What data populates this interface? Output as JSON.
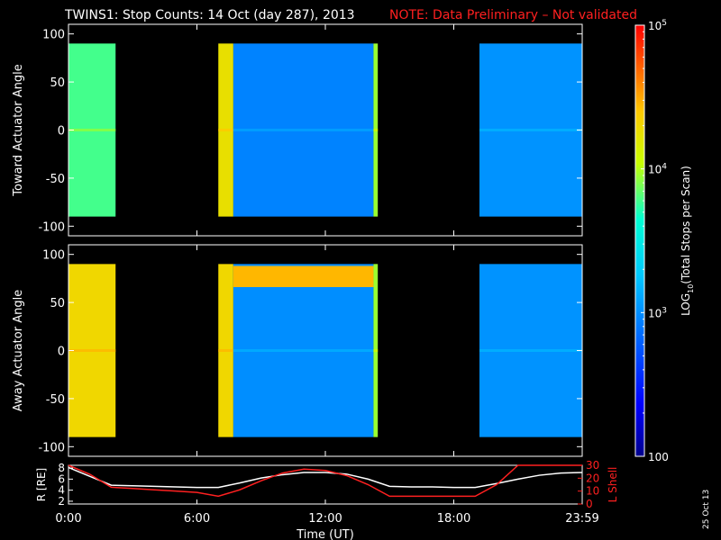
{
  "header": {
    "title": "TWINS1: Stop Counts: 14 Oct (day 287), 2013",
    "note": "NOTE: Data Preliminary – Not validated"
  },
  "footer_date": "25 Oct 13",
  "colors": {
    "background": "#000000",
    "axis": "#ffffff",
    "note": "#ff2020",
    "l_shell": "#ff2020",
    "r_line": "#ffffff"
  },
  "chart_data": [
    {
      "type": "heatmap",
      "id": "toward",
      "ylabel": "Toward Actuator Angle",
      "x_range_hours": [
        0,
        24
      ],
      "ylim": [
        -110,
        110
      ],
      "yticks": [
        100,
        50,
        0,
        -50,
        -100
      ],
      "data_y_extent": [
        -90,
        90
      ],
      "colorscale": "log",
      "segments": [
        {
          "x_start": 0.0,
          "x_end": 2.2,
          "level": 3.78
        },
        {
          "x_start": 7.0,
          "x_end": 7.7,
          "level": 4.25
        },
        {
          "x_start": 7.7,
          "x_end": 14.25,
          "level": 2.95
        },
        {
          "x_start": 14.25,
          "x_end": 14.45,
          "level": 3.95
        },
        {
          "x_start": 19.2,
          "x_end": 24.0,
          "level": 3.02
        }
      ]
    },
    {
      "type": "heatmap",
      "id": "away",
      "ylabel": "Away Actuator Angle",
      "x_range_hours": [
        0,
        24
      ],
      "ylim": [
        -110,
        110
      ],
      "yticks": [
        100,
        50,
        0,
        -50,
        -100
      ],
      "data_y_extent": [
        -90,
        90
      ],
      "colorscale": "log",
      "segments": [
        {
          "x_start": 0.0,
          "x_end": 2.2,
          "level": 4.3
        },
        {
          "x_start": 7.0,
          "x_end": 7.7,
          "level": 4.3
        },
        {
          "x_start": 7.7,
          "x_end": 14.25,
          "level": 3.0
        },
        {
          "x_start": 14.25,
          "x_end": 14.45,
          "level": 3.95
        },
        {
          "x_start": 19.2,
          "x_end": 24.0,
          "level": 3.02
        }
      ],
      "band": {
        "x_start": 7.7,
        "x_end": 14.25,
        "y_min": 66,
        "y_max": 88,
        "level": 4.45
      }
    },
    {
      "type": "line",
      "id": "orbit",
      "xlabel": "Time (UT)",
      "x_ticks": [
        "0:00",
        "6:00",
        "12:00",
        "18:00",
        "23:59"
      ],
      "x_tick_hours": [
        0,
        6,
        12,
        18,
        24
      ],
      "ylabel_left": "R [RE]",
      "ylim_left": [
        1.5,
        8.5
      ],
      "yticks_left": [
        8,
        6,
        4,
        2
      ],
      "ylabel_right": "L Shell",
      "ylim_right": [
        0,
        30
      ],
      "yticks_right": [
        30,
        20,
        10,
        0
      ],
      "series": [
        {
          "axis": "left",
          "x": [
            0,
            1,
            2,
            3,
            4,
            5,
            6,
            7,
            8,
            9,
            10,
            11,
            12,
            13,
            14,
            15,
            16,
            17,
            18,
            19,
            20,
            21,
            22,
            23,
            24
          ],
          "values": [
            8.1,
            6.5,
            4.9,
            4.8,
            4.7,
            4.6,
            4.5,
            4.5,
            5.3,
            6.2,
            6.8,
            7.2,
            7.2,
            6.9,
            6.0,
            4.7,
            4.6,
            4.6,
            4.5,
            4.5,
            5.2,
            6.0,
            6.7,
            7.1,
            7.2
          ]
        },
        {
          "axis": "right",
          "x": [
            0,
            1,
            2,
            3,
            4,
            5,
            6,
            7,
            8,
            9,
            10,
            11,
            12,
            13,
            14,
            15,
            16,
            17,
            18,
            19,
            20,
            21,
            22,
            23,
            24
          ],
          "values": [
            30,
            23,
            13,
            12,
            11,
            10,
            9,
            6,
            11,
            18,
            24,
            27,
            26,
            22,
            15,
            6,
            6,
            6,
            6,
            6,
            15,
            30,
            30,
            30,
            30
          ]
        }
      ]
    },
    {
      "type": "colorbar",
      "id": "colorbar",
      "label": "LOG10(Total Stops per Scan)",
      "label_main": "LOG",
      "label_sub": "10",
      "label_rest": "(Total Stops per Scan)",
      "range_log": [
        2,
        5
      ],
      "ticks": [
        {
          "value": 5,
          "label": "10",
          "sup": "5"
        },
        {
          "value": 4,
          "label": "10",
          "sup": "4"
        },
        {
          "value": 3,
          "label": "10",
          "sup": "3"
        },
        {
          "value": 2,
          "label": "100",
          "sup": ""
        }
      ]
    }
  ]
}
